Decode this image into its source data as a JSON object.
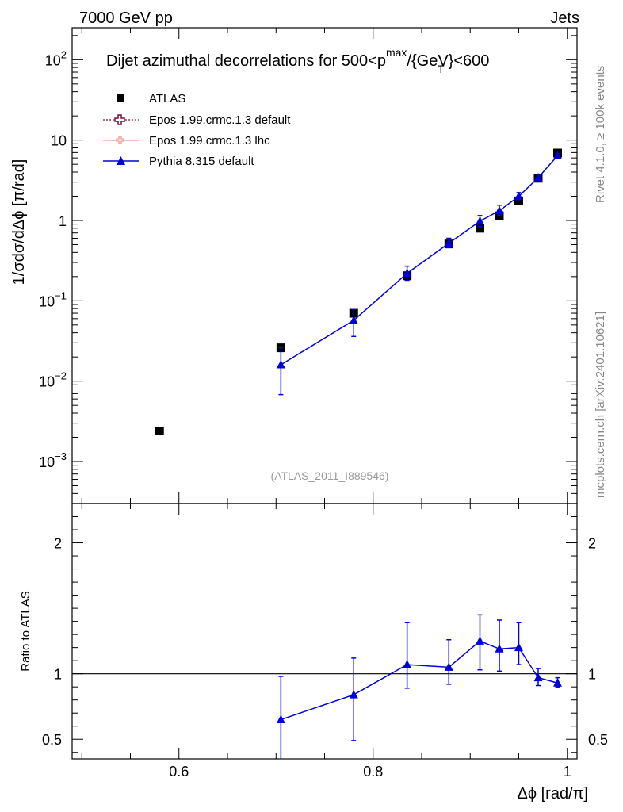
{
  "header": {
    "left_label": "7000 GeV pp",
    "right_label": "Jets",
    "side_label_top": "Rivet 4.1.0, ≥ 100k events",
    "side_label_bottom": "mcplots.cern.ch [arXiv:2401.10621]"
  },
  "chart_data": {
    "type": "scatter",
    "title": "Dijet azimuthal decorrelations for 500<p",
    "title_sup": "max",
    "title_sub": "T",
    "title_tail": "/{GeV}<600",
    "analysis_label": "(ATLAS_2011_I889546)",
    "xlabel": "Δϕ [rad/π]",
    "ylabel": "1/σdσ/dΔϕ [π/rad]",
    "ratio_ylabel": "Ratio to ATLAS",
    "xlim": [
      0.49,
      1.01
    ],
    "ylim": [
      0.0003,
      250
    ],
    "yscale": "log",
    "ratio_ylim": [
      0.35,
      2.3
    ],
    "x_ticks": [
      0.6,
      0.8,
      1
    ],
    "x_tick_labels": [
      "0.6",
      "0.8",
      "1"
    ],
    "y_tick_labels": [
      {
        "base": "10",
        "exp": "2"
      },
      {
        "base": "10",
        "exp": ""
      },
      {
        "base": "1",
        "exp": ""
      },
      {
        "base": "10",
        "exp": "−1"
      },
      {
        "base": "10",
        "exp": "−2"
      },
      {
        "base": "10",
        "exp": "−3"
      }
    ],
    "y_tick_values": [
      100,
      10,
      1,
      0.1,
      0.01,
      0.001
    ],
    "ratio_ticks": [
      0.5,
      1,
      2
    ],
    "ratio_tick_labels": [
      "0.5",
      "1",
      "2"
    ],
    "legend": [
      {
        "label": "ATLAS",
        "style": "square"
      },
      {
        "label": "Epos 1.99.crmc.1.3 default",
        "style": "cross-dotted"
      },
      {
        "label": "Epos 1.99.crmc.1.3 lhc",
        "style": "cross-solid"
      },
      {
        "label": "Pythia 8.315 default",
        "style": "triangle"
      }
    ],
    "series": [
      {
        "name": "ATLAS",
        "x": [
          0.58,
          0.705,
          0.78,
          0.835,
          0.878,
          0.91,
          0.93,
          0.95,
          0.97,
          0.99
        ],
        "y": [
          0.0024,
          0.026,
          0.07,
          0.205,
          0.51,
          0.8,
          1.14,
          1.75,
          3.35,
          6.9
        ],
        "color": "#000000"
      },
      {
        "name": "Pythia 8.315 default",
        "x": [
          0.705,
          0.78,
          0.835,
          0.878,
          0.91,
          0.93,
          0.95,
          0.97,
          0.99
        ],
        "y": [
          0.016,
          0.057,
          0.22,
          0.52,
          0.98,
          1.32,
          2.0,
          3.4,
          6.4
        ],
        "y_lo": [
          0.0068,
          0.036,
          0.18,
          0.46,
          0.84,
          1.16,
          1.82,
          3.2,
          6.1
        ],
        "y_hi": [
          0.026,
          0.078,
          0.27,
          0.6,
          1.15,
          1.55,
          2.22,
          3.6,
          6.8
        ],
        "ratio": [
          0.65,
          0.84,
          1.07,
          1.05,
          1.25,
          1.19,
          1.2,
          0.97,
          0.93
        ],
        "ratio_lo": [
          0.3,
          0.49,
          0.89,
          0.92,
          1.03,
          1.02,
          1.07,
          0.91,
          0.9
        ],
        "ratio_hi": [
          0.98,
          1.12,
          1.39,
          1.26,
          1.45,
          1.41,
          1.39,
          1.04,
          0.97
        ],
        "color": "#0000dd"
      }
    ]
  }
}
